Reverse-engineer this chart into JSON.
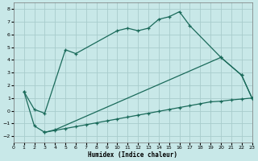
{
  "xlabel": "Humidex (Indice chaleur)",
  "background_color": "#c8e8e8",
  "grid_color": "#a8cccc",
  "line_color": "#1a6a5a",
  "xlim": [
    0,
    23
  ],
  "ylim": [
    -2.5,
    8.5
  ],
  "xticks": [
    0,
    1,
    2,
    3,
    4,
    5,
    6,
    7,
    8,
    9,
    10,
    11,
    12,
    13,
    14,
    15,
    16,
    17,
    18,
    19,
    20,
    21,
    22,
    23
  ],
  "yticks": [
    -2,
    -1,
    0,
    1,
    2,
    3,
    4,
    5,
    6,
    7,
    8
  ],
  "line1_x": [
    1,
    2,
    3,
    5,
    6,
    10,
    11,
    12,
    13,
    14,
    15,
    16,
    17,
    20,
    22,
    23
  ],
  "line1_y": [
    1.5,
    0.1,
    -0.2,
    4.8,
    4.5,
    6.3,
    6.5,
    6.3,
    6.5,
    7.2,
    7.4,
    7.8,
    6.7,
    4.2,
    2.8,
    1.0
  ],
  "line2_x": [
    1,
    2,
    3,
    4,
    20,
    22,
    23
  ],
  "line2_y": [
    1.5,
    -1.2,
    -1.7,
    -1.5,
    4.2,
    2.8,
    1.0
  ],
  "line3_x": [
    3,
    4,
    5,
    6,
    7,
    8,
    9,
    10,
    11,
    12,
    13,
    14,
    15,
    16,
    17,
    18,
    19,
    20,
    21,
    22,
    23
  ],
  "line3_y": [
    -1.7,
    -1.55,
    -1.4,
    -1.25,
    -1.1,
    -0.95,
    -0.8,
    -0.65,
    -0.5,
    -0.35,
    -0.2,
    -0.05,
    0.1,
    0.25,
    0.4,
    0.55,
    0.7,
    0.75,
    0.85,
    0.92,
    1.0
  ]
}
